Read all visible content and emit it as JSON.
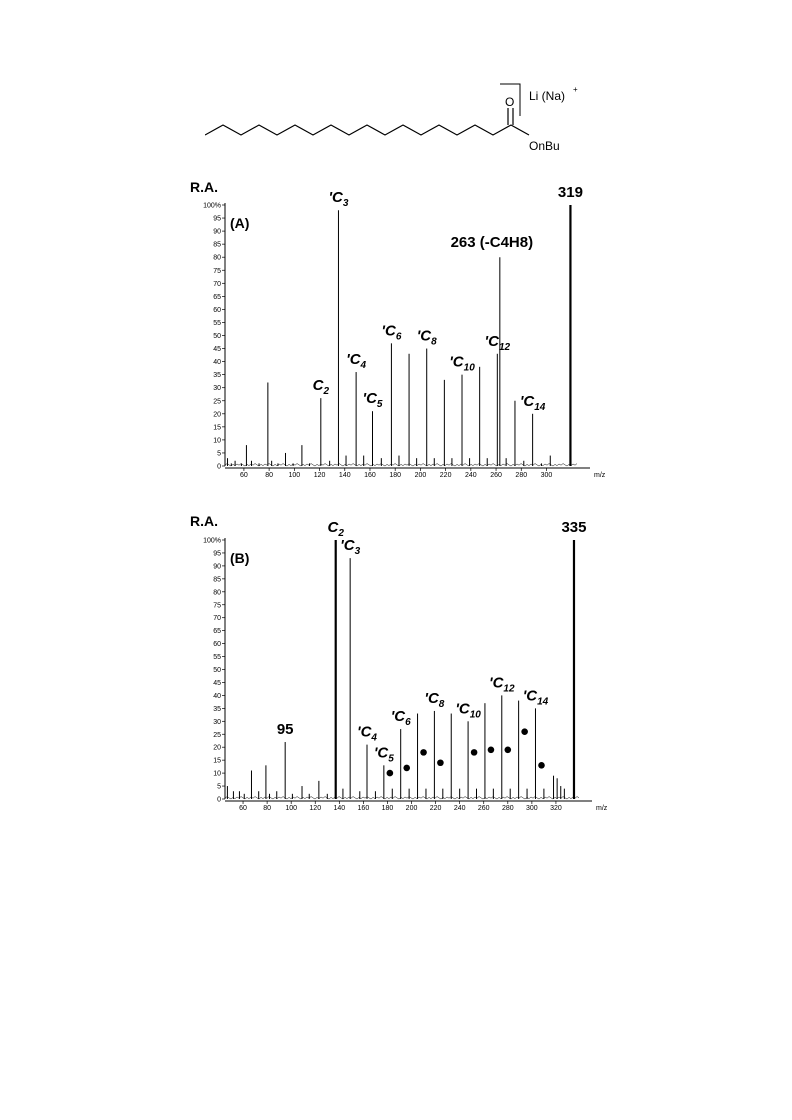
{
  "structure": {
    "carbonyl_label": "O",
    "ester_label": "OnBu",
    "ion_label": "Li (Na)",
    "charge": "+"
  },
  "chart_data": [
    {
      "type": "bar",
      "panel_label": "(A)",
      "ylabel": "R.A.",
      "xlabel": "m/z",
      "xlim": [
        45,
        325
      ],
      "ylim": [
        0,
        100
      ],
      "x_ticks": [
        60,
        80,
        100,
        120,
        140,
        160,
        180,
        200,
        220,
        240,
        260,
        280,
        300
      ],
      "y_ticks": [
        "0",
        "5",
        "10",
        "15",
        "20",
        "25",
        "30",
        "35",
        "40",
        "45",
        "50",
        "55",
        "60",
        "65",
        "70",
        "75",
        "80",
        "85",
        "90",
        "95",
        "100%"
      ],
      "x": [
        47,
        50,
        53,
        58,
        62,
        66,
        72,
        79,
        82,
        87,
        93,
        99,
        106,
        112,
        121,
        128,
        135,
        141,
        149,
        155,
        162,
        169,
        177,
        183,
        191,
        197,
        205,
        211,
        219,
        225,
        233,
        239,
        247,
        253,
        261,
        263,
        268,
        275,
        282,
        289,
        296,
        303,
        319
      ],
      "values": [
        3,
        1,
        2,
        1,
        8,
        2,
        1,
        32,
        2,
        1,
        5,
        1,
        8,
        1,
        26,
        2,
        98,
        4,
        36,
        4,
        21,
        3,
        47,
        4,
        43,
        3,
        45,
        3,
        33,
        3,
        35,
        3,
        38,
        3,
        43,
        80,
        3,
        25,
        2,
        20,
        1,
        4,
        100
      ],
      "annotations": [
        {
          "label": "'C",
          "sub": "3",
          "x": 135,
          "y": 98
        },
        {
          "label": "C",
          "sub": "2",
          "x": 121,
          "y": 26
        },
        {
          "label": "'C",
          "sub": "4",
          "x": 149,
          "y": 36
        },
        {
          "label": "'C",
          "sub": "5",
          "x": 162,
          "y": 21
        },
        {
          "label": "'C",
          "sub": "6",
          "x": 177,
          "y": 47
        },
        {
          "label": "'C",
          "sub": "8",
          "x": 205,
          "y": 45
        },
        {
          "label": "'C",
          "sub": "10",
          "x": 233,
          "y": 35
        },
        {
          "label": "'C",
          "sub": "12",
          "x": 261,
          "y": 43
        },
        {
          "label": "'C",
          "sub": "14",
          "x": 289,
          "y": 20
        },
        {
          "label": "263 (-C4H8)",
          "x": 263,
          "y": 80
        },
        {
          "label": "319",
          "x": 319,
          "y": 100
        }
      ],
      "markers": []
    },
    {
      "type": "bar",
      "panel_label": "(B)",
      "ylabel": "R.A.",
      "xlabel": "m/z",
      "xlim": [
        45,
        340
      ],
      "ylim": [
        0,
        100
      ],
      "x_ticks": [
        60,
        80,
        100,
        120,
        140,
        160,
        180,
        200,
        220,
        240,
        260,
        280,
        300,
        320
      ],
      "y_ticks": [
        "0",
        "5",
        "10",
        "15",
        "20",
        "25",
        "30",
        "35",
        "40",
        "45",
        "50",
        "55",
        "60",
        "65",
        "70",
        "75",
        "80",
        "85",
        "90",
        "95",
        "100%"
      ],
      "x": [
        47,
        52,
        57,
        61,
        67,
        73,
        79,
        82,
        88,
        95,
        101,
        109,
        115,
        123,
        130,
        137,
        143,
        149,
        157,
        163,
        170,
        177,
        184,
        191,
        198,
        205,
        212,
        219,
        226,
        233,
        240,
        247,
        254,
        261,
        268,
        275,
        282,
        289,
        296,
        303,
        310,
        318,
        321,
        324,
        327,
        335
      ],
      "values": [
        5,
        3,
        3,
        2,
        11,
        3,
        13,
        2,
        3,
        22,
        2,
        5,
        2,
        7,
        2,
        100,
        4,
        93,
        3,
        21,
        3,
        13,
        4,
        27,
        4,
        33,
        4,
        34,
        4,
        33,
        4,
        30,
        4,
        37,
        4,
        40,
        4,
        38,
        4,
        35,
        4,
        9,
        8,
        5,
        4,
        100
      ],
      "annotations": [
        {
          "label": "C",
          "sub": "2",
          "x": 137,
          "y": 100
        },
        {
          "label": "'C",
          "sub": "3",
          "x": 149,
          "y": 93
        },
        {
          "label": "95",
          "x": 95,
          "y": 22
        },
        {
          "label": "'C",
          "sub": "4",
          "x": 163,
          "y": 21
        },
        {
          "label": "'C",
          "sub": "5",
          "x": 177,
          "y": 13
        },
        {
          "label": "'C",
          "sub": "6",
          "x": 191,
          "y": 27
        },
        {
          "label": "'C",
          "sub": "8",
          "x": 219,
          "y": 34
        },
        {
          "label": "'C",
          "sub": "10",
          "x": 247,
          "y": 30
        },
        {
          "label": "'C",
          "sub": "12",
          "x": 275,
          "y": 40
        },
        {
          "label": "'C",
          "sub": "14",
          "x": 303,
          "y": 35
        },
        {
          "label": "335",
          "x": 335,
          "y": 100
        }
      ],
      "markers": [
        {
          "x": 182,
          "y": 10
        },
        {
          "x": 196,
          "y": 12
        },
        {
          "x": 210,
          "y": 18
        },
        {
          "x": 224,
          "y": 14
        },
        {
          "x": 252,
          "y": 18
        },
        {
          "x": 266,
          "y": 19
        },
        {
          "x": 280,
          "y": 19
        },
        {
          "x": 294,
          "y": 26
        },
        {
          "x": 308,
          "y": 13
        }
      ]
    }
  ]
}
